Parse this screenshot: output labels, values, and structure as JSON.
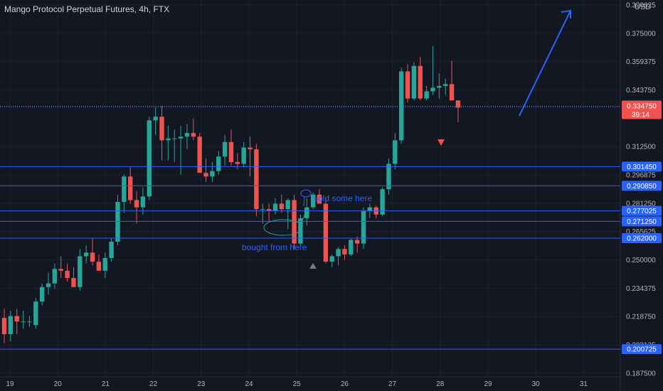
{
  "header": {
    "title": "Mango Protocol Perpetual Futures, 4h, FTX",
    "currency": "USD"
  },
  "colors": {
    "background": "#131722",
    "up": "#26a69a",
    "down": "#ef5350",
    "line": "#2962ff",
    "grid": "#1e222d",
    "axis_text": "#b2b5be"
  },
  "chart_data": {
    "type": "candlestick",
    "interval": "4h",
    "exchange": "FTX",
    "y_axis_ticks": [
      "0.390625",
      "0.375000",
      "0.359375",
      "0.343750",
      "0.312500",
      "0.296875",
      "0.281250",
      "0.265625",
      "0.250000",
      "0.234375",
      "0.218750",
      "0.203125",
      "0.187500"
    ],
    "x_axis_ticks": [
      "19",
      "20",
      "21",
      "22",
      "23",
      "24",
      "25",
      "26",
      "27",
      "28",
      "29",
      "30",
      "31"
    ],
    "ylim": [
      0.1855,
      0.3934
    ],
    "grid": true,
    "last_price": {
      "value": "0.334750",
      "countdown": "39:14"
    },
    "horizontal_levels": [
      "0.334200",
      "0.301450",
      "0.290850",
      "0.277025",
      "0.271250",
      "0.262000",
      "0.200725"
    ],
    "candles": [
      [
        0.218,
        0.223,
        0.204,
        0.209
      ],
      [
        0.209,
        0.222,
        0.205,
        0.219
      ],
      [
        0.219,
        0.223,
        0.209,
        0.216
      ],
      [
        0.216,
        0.222,
        0.212,
        0.216
      ],
      [
        0.216,
        0.219,
        0.213,
        0.216
      ],
      [
        0.214,
        0.229,
        0.212,
        0.227
      ],
      [
        0.227,
        0.237,
        0.225,
        0.235
      ],
      [
        0.235,
        0.243,
        0.231,
        0.237
      ],
      [
        0.237,
        0.248,
        0.234,
        0.245
      ],
      [
        0.245,
        0.252,
        0.24,
        0.244
      ],
      [
        0.244,
        0.248,
        0.238,
        0.24
      ],
      [
        0.24,
        0.246,
        0.235,
        0.235
      ],
      [
        0.235,
        0.256,
        0.233,
        0.252
      ],
      [
        0.252,
        0.258,
        0.248,
        0.254
      ],
      [
        0.254,
        0.262,
        0.247,
        0.249
      ],
      [
        0.249,
        0.253,
        0.244,
        0.244
      ],
      [
        0.244,
        0.254,
        0.24,
        0.251
      ],
      [
        0.251,
        0.262,
        0.249,
        0.26
      ],
      [
        0.26,
        0.286,
        0.258,
        0.282
      ],
      [
        0.282,
        0.297,
        0.276,
        0.296
      ],
      [
        0.296,
        0.301,
        0.281,
        0.283
      ],
      [
        0.283,
        0.288,
        0.27,
        0.279
      ],
      [
        0.279,
        0.29,
        0.275,
        0.285
      ],
      [
        0.285,
        0.329,
        0.283,
        0.327
      ],
      [
        0.327,
        0.334,
        0.319,
        0.329
      ],
      [
        0.329,
        0.335,
        0.305,
        0.316
      ],
      [
        0.316,
        0.324,
        0.305,
        0.317
      ],
      [
        0.317,
        0.322,
        0.304,
        0.317
      ],
      [
        0.317,
        0.324,
        0.297,
        0.318
      ],
      [
        0.318,
        0.325,
        0.311,
        0.32
      ],
      [
        0.32,
        0.328,
        0.316,
        0.318
      ],
      [
        0.318,
        0.32,
        0.299,
        0.298
      ],
      [
        0.298,
        0.306,
        0.293,
        0.296
      ],
      [
        0.296,
        0.304,
        0.293,
        0.299
      ],
      [
        0.299,
        0.31,
        0.297,
        0.307
      ],
      [
        0.307,
        0.319,
        0.302,
        0.315
      ],
      [
        0.315,
        0.322,
        0.302,
        0.304
      ],
      [
        0.304,
        0.309,
        0.3,
        0.303
      ],
      [
        0.303,
        0.315,
        0.301,
        0.312
      ],
      [
        0.312,
        0.318,
        0.296,
        0.311
      ],
      [
        0.311,
        0.314,
        0.274,
        0.278
      ],
      [
        0.278,
        0.281,
        0.27,
        0.278
      ],
      [
        0.278,
        0.281,
        0.271,
        0.277
      ],
      [
        0.277,
        0.284,
        0.275,
        0.281
      ],
      [
        0.281,
        0.286,
        0.276,
        0.278
      ],
      [
        0.278,
        0.284,
        0.267,
        0.283
      ],
      [
        0.283,
        0.286,
        0.256,
        0.259
      ],
      [
        0.259,
        0.275,
        0.258,
        0.273
      ],
      [
        0.273,
        0.284,
        0.269,
        0.279
      ],
      [
        0.279,
        0.287,
        0.278,
        0.286
      ],
      [
        0.286,
        0.289,
        0.281,
        0.281
      ],
      [
        0.281,
        0.284,
        0.248,
        0.249
      ],
      [
        0.249,
        0.253,
        0.246,
        0.252
      ],
      [
        0.252,
        0.257,
        0.247,
        0.256
      ],
      [
        0.256,
        0.258,
        0.25,
        0.253
      ],
      [
        0.253,
        0.262,
        0.252,
        0.261
      ],
      [
        0.261,
        0.263,
        0.254,
        0.259
      ],
      [
        0.259,
        0.279,
        0.256,
        0.277
      ],
      [
        0.277,
        0.281,
        0.273,
        0.279
      ],
      [
        0.279,
        0.28,
        0.273,
        0.275
      ],
      [
        0.275,
        0.29,
        0.274,
        0.289
      ],
      [
        0.289,
        0.306,
        0.286,
        0.303
      ],
      [
        0.303,
        0.32,
        0.3,
        0.316
      ],
      [
        0.316,
        0.356,
        0.314,
        0.354
      ],
      [
        0.354,
        0.358,
        0.337,
        0.339
      ],
      [
        0.339,
        0.359,
        0.338,
        0.357
      ],
      [
        0.357,
        0.362,
        0.338,
        0.339
      ],
      [
        0.339,
        0.346,
        0.338,
        0.343
      ],
      [
        0.343,
        0.368,
        0.341,
        0.345
      ],
      [
        0.345,
        0.353,
        0.339,
        0.346
      ],
      [
        0.346,
        0.35,
        0.341,
        0.347
      ],
      [
        0.347,
        0.36,
        0.34,
        0.338
      ],
      [
        0.338,
        0.338,
        0.326,
        0.334
      ]
    ],
    "annotations": [
      {
        "text": "bought from here",
        "x": 25,
        "y": 0.2605
      },
      {
        "text": "sold some here",
        "x": 26,
        "y": 0.2895
      }
    ]
  }
}
